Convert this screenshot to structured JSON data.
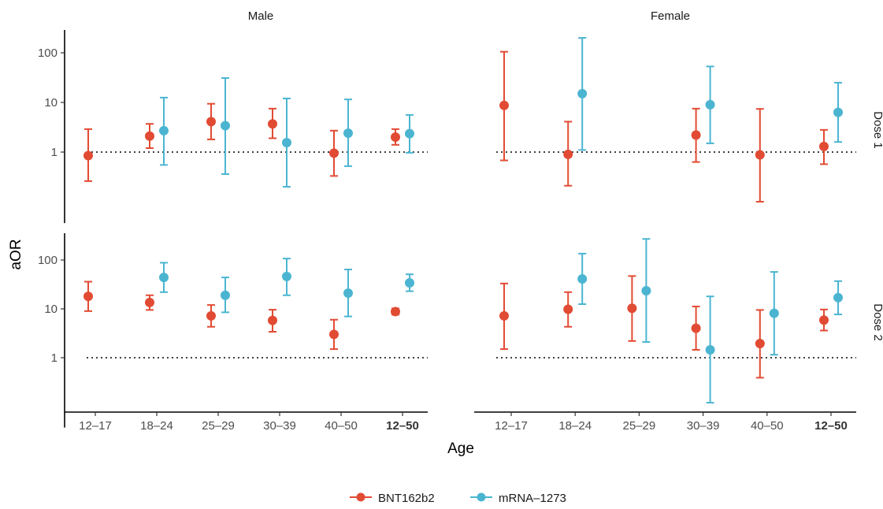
{
  "chart_data": {
    "type": "scatter",
    "subtype": "point-range (log scale)",
    "xlabel": "Age",
    "ylabel": "aOR",
    "y_scale": "log10",
    "ylim": [
      0.04,
      300
    ],
    "y_ticks": [
      1,
      10,
      100
    ],
    "y_tick_labels": [
      "1",
      "10",
      "100"
    ],
    "reference_line": 1,
    "categories": [
      "12–17",
      "18–24",
      "25–29",
      "30–39",
      "40–50",
      "12–50"
    ],
    "bold_category": "12–50",
    "columns": [
      "Male",
      "Female"
    ],
    "rows": [
      "Dose 1",
      "Dose 2"
    ],
    "legend": {
      "position": "bottom",
      "entries": [
        "BNT162b2",
        "mRNA–1273"
      ]
    },
    "colors": {
      "BNT162b2": "#e24b33",
      "mRNA–1273": "#4bb5d1"
    },
    "panels": [
      {
        "column": "Male",
        "row": "Dose 1",
        "series": [
          {
            "name": "BNT162b2",
            "points": [
              {
                "x": "12–17",
                "y": 0.85,
                "lo": 0.26,
                "hi": 2.9
              },
              {
                "x": "18–24",
                "y": 2.1,
                "lo": 1.2,
                "hi": 3.7
              },
              {
                "x": "25–29",
                "y": 4.1,
                "lo": 1.8,
                "hi": 9.4
              },
              {
                "x": "30–39",
                "y": 3.7,
                "lo": 1.9,
                "hi": 7.5
              },
              {
                "x": "40–50",
                "y": 0.95,
                "lo": 0.33,
                "hi": 2.7
              },
              {
                "x": "12–50",
                "y": 2.0,
                "lo": 1.4,
                "hi": 2.9
              }
            ]
          },
          {
            "name": "mRNA–1273",
            "points": [
              {
                "x": "18–24",
                "y": 2.7,
                "lo": 0.55,
                "hi": 12.5
              },
              {
                "x": "25–29",
                "y": 3.4,
                "lo": 0.36,
                "hi": 31
              },
              {
                "x": "30–39",
                "y": 1.55,
                "lo": 0.2,
                "hi": 12
              },
              {
                "x": "40–50",
                "y": 2.4,
                "lo": 0.52,
                "hi": 11.5
              },
              {
                "x": "12–50",
                "y": 2.35,
                "lo": 0.97,
                "hi": 5.6
              }
            ]
          }
        ]
      },
      {
        "column": "Female",
        "row": "Dose 1",
        "series": [
          {
            "name": "BNT162b2",
            "points": [
              {
                "x": "12–17",
                "y": 8.7,
                "lo": 0.68,
                "hi": 105
              },
              {
                "x": "18–24",
                "y": 0.9,
                "lo": 0.21,
                "hi": 4.1
              },
              {
                "x": "30–39",
                "y": 2.2,
                "lo": 0.63,
                "hi": 7.5
              },
              {
                "x": "40–50",
                "y": 0.88,
                "lo": 0.1,
                "hi": 7.4
              },
              {
                "x": "12–50",
                "y": 1.3,
                "lo": 0.57,
                "hi": 2.8
              }
            ]
          },
          {
            "name": "mRNA–1273",
            "points": [
              {
                "x": "18–24",
                "y": 15,
                "lo": 1.1,
                "hi": 200
              },
              {
                "x": "30–39",
                "y": 9.0,
                "lo": 1.5,
                "hi": 53
              },
              {
                "x": "12–50",
                "y": 6.3,
                "lo": 1.6,
                "hi": 25
              }
            ]
          }
        ]
      },
      {
        "column": "Male",
        "row": "Dose 2",
        "series": [
          {
            "name": "BNT162b2",
            "points": [
              {
                "x": "12–17",
                "y": 18,
                "lo": 9.0,
                "hi": 36
              },
              {
                "x": "18–24",
                "y": 13.5,
                "lo": 9.5,
                "hi": 19
              },
              {
                "x": "25–29",
                "y": 7.2,
                "lo": 4.3,
                "hi": 12
              },
              {
                "x": "30–39",
                "y": 5.8,
                "lo": 3.4,
                "hi": 9.6
              },
              {
                "x": "40–50",
                "y": 3.0,
                "lo": 1.5,
                "hi": 6.0
              },
              {
                "x": "12–50",
                "y": 8.8,
                "lo": 7.6,
                "hi": 10.2
              }
            ]
          },
          {
            "name": "mRNA–1273",
            "points": [
              {
                "x": "18–24",
                "y": 44,
                "lo": 22,
                "hi": 88
              },
              {
                "x": "25–29",
                "y": 19,
                "lo": 8.5,
                "hi": 44
              },
              {
                "x": "30–39",
                "y": 46,
                "lo": 19,
                "hi": 107
              },
              {
                "x": "40–50",
                "y": 21,
                "lo": 7.0,
                "hi": 64
              },
              {
                "x": "12–50",
                "y": 34,
                "lo": 23,
                "hi": 51
              }
            ]
          }
        ]
      },
      {
        "column": "Female",
        "row": "Dose 2",
        "series": [
          {
            "name": "BNT162b2",
            "points": [
              {
                "x": "12–17",
                "y": 7.2,
                "lo": 1.5,
                "hi": 33
              },
              {
                "x": "18–24",
                "y": 9.8,
                "lo": 4.3,
                "hi": 22
              },
              {
                "x": "25–29",
                "y": 10.3,
                "lo": 2.2,
                "hi": 47
              },
              {
                "x": "30–39",
                "y": 4.0,
                "lo": 1.45,
                "hi": 11.2
              },
              {
                "x": "40–50",
                "y": 1.95,
                "lo": 0.39,
                "hi": 9.5
              },
              {
                "x": "12–50",
                "y": 5.9,
                "lo": 3.6,
                "hi": 9.7
              }
            ]
          },
          {
            "name": "mRNA–1273",
            "points": [
              {
                "x": "18–24",
                "y": 41,
                "lo": 12.5,
                "hi": 135
              },
              {
                "x": "25–29",
                "y": 23.5,
                "lo": 2.1,
                "hi": 270
              },
              {
                "x": "30–39",
                "y": 1.45,
                "lo": 0.12,
                "hi": 18
              },
              {
                "x": "40–50",
                "y": 8.1,
                "lo": 1.15,
                "hi": 57
              },
              {
                "x": "12–50",
                "y": 17,
                "lo": 7.7,
                "hi": 37
              }
            ]
          }
        ]
      }
    ]
  }
}
